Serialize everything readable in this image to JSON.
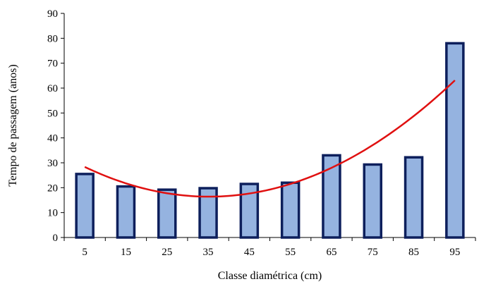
{
  "chart_data": {
    "type": "bar",
    "categories": [
      "5",
      "15",
      "25",
      "35",
      "45",
      "55",
      "65",
      "75",
      "85",
      "95"
    ],
    "values": [
      25.5,
      20.5,
      19.2,
      19.8,
      21.5,
      22,
      33,
      29.3,
      32.2,
      78
    ],
    "trendline": {
      "type": "polynomial",
      "color": "#e01010",
      "values": [
        28.2,
        21.8,
        17.9,
        16.6,
        17.6,
        21.4,
        27.9,
        37.0,
        48.8,
        63.2
      ]
    },
    "xlabel": "Classe diamétrica (cm)",
    "ylabel": "Tempo de passagem (anos)",
    "ylim": [
      0,
      90
    ],
    "yticks": [
      "0",
      "10",
      "20",
      "30",
      "40",
      "50",
      "60",
      "70",
      "80",
      "90"
    ],
    "grid": false,
    "legend": "none",
    "colors": {
      "bar_fill": "#95b3e0",
      "bar_stroke": "#0d1f5c",
      "axis": "#000000"
    }
  }
}
